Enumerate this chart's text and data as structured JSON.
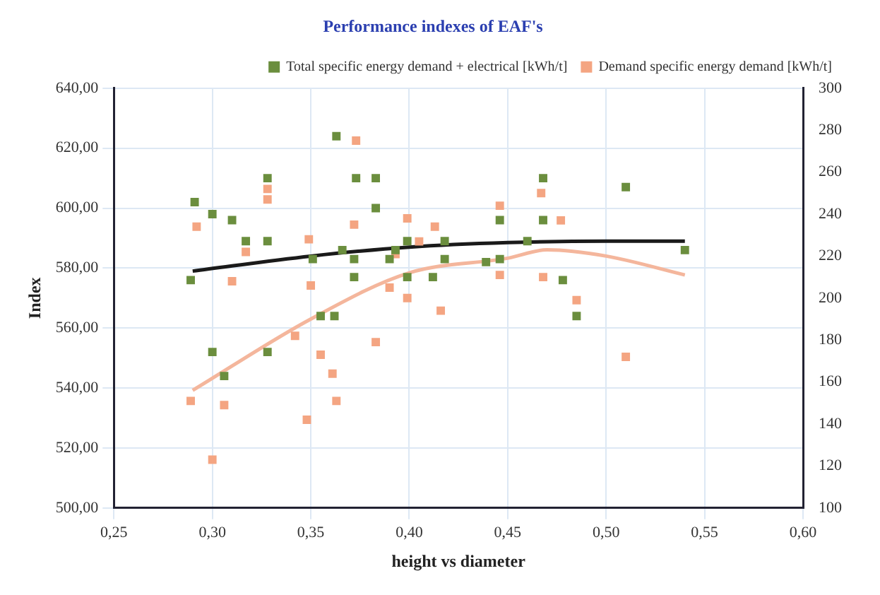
{
  "chart_data": {
    "type": "scatter",
    "title": "Performance indexes of EAF's",
    "xlabel": "height vs diameter",
    "ylabel": "Index",
    "xlim": [
      0.25,
      0.6
    ],
    "xticks": [
      {
        "value": 0.25,
        "label": "0,25"
      },
      {
        "value": 0.3,
        "label": "0,30"
      },
      {
        "value": 0.35,
        "label": "0,35"
      },
      {
        "value": 0.4,
        "label": "0,40"
      },
      {
        "value": 0.45,
        "label": "0,45"
      },
      {
        "value": 0.5,
        "label": "0,50"
      },
      {
        "value": 0.55,
        "label": "0,55"
      },
      {
        "value": 0.6,
        "label": "0,60"
      }
    ],
    "ylim": [
      500,
      640
    ],
    "yticks": [
      {
        "value": 500,
        "label": "500,00"
      },
      {
        "value": 520,
        "label": "520,00"
      },
      {
        "value": 540,
        "label": "540,00"
      },
      {
        "value": 560,
        "label": "560,00"
      },
      {
        "value": 580,
        "label": "580,00"
      },
      {
        "value": 600,
        "label": "600,00"
      },
      {
        "value": 620,
        "label": "620,00"
      },
      {
        "value": 640,
        "label": "640,00"
      }
    ],
    "y2lim": [
      100,
      300
    ],
    "y2ticks": [
      100,
      120,
      140,
      160,
      180,
      200,
      220,
      240,
      260,
      280,
      300
    ],
    "grid": true,
    "legend": "top right",
    "series": [
      {
        "name": "Total specific energy demand + electrical [kWh/t]",
        "marker": "square",
        "color": "#6b8e3e",
        "x": [
          0.291,
          0.3,
          0.31,
          0.317,
          0.328,
          0.328,
          0.328,
          0.3,
          0.306,
          0.289,
          0.351,
          0.355,
          0.362,
          0.363,
          0.366,
          0.372,
          0.373,
          0.372,
          0.383,
          0.383,
          0.39,
          0.393,
          0.399,
          0.399,
          0.412,
          0.418,
          0.418,
          0.439,
          0.446,
          0.446,
          0.46,
          0.468,
          0.468,
          0.478,
          0.485,
          0.51,
          0.54
        ],
        "values": [
          602,
          598,
          596,
          589,
          610,
          589,
          552,
          552,
          544,
          576,
          583,
          564,
          564,
          624,
          586,
          583,
          610,
          577,
          610,
          600,
          583,
          586,
          589,
          577,
          577,
          589,
          583,
          582,
          583,
          596,
          589,
          610,
          596,
          576,
          564,
          607,
          586
        ]
      },
      {
        "name": "Demand specific energy demand [kWh/t]",
        "marker": "square",
        "axis": "y2",
        "color": "#f4a582",
        "x": [
          0.292,
          0.3,
          0.306,
          0.289,
          0.31,
          0.317,
          0.328,
          0.328,
          0.342,
          0.349,
          0.35,
          0.348,
          0.355,
          0.361,
          0.363,
          0.372,
          0.373,
          0.383,
          0.393,
          0.399,
          0.399,
          0.39,
          0.405,
          0.413,
          0.416,
          0.446,
          0.446,
          0.467,
          0.468,
          0.477,
          0.485,
          0.51
        ],
        "values": [
          234,
          123,
          149,
          151,
          208,
          222,
          252,
          247,
          182,
          228,
          206,
          142,
          173,
          164,
          151,
          235,
          275,
          179,
          221,
          238,
          200,
          205,
          227,
          234,
          194,
          244,
          211,
          250,
          210,
          237,
          199,
          172
        ]
      },
      {
        "type": "line",
        "marker": "none",
        "color": "#1a1a1a",
        "x": [
          0.29,
          0.35,
          0.4,
          0.45,
          0.5,
          0.54
        ],
        "values": [
          579,
          584,
          587,
          588.5,
          589,
          589
        ]
      },
      {
        "type": "line",
        "marker": "none",
        "axis": "y2",
        "color": "#f4b69c",
        "x": [
          0.29,
          0.35,
          0.4,
          0.45,
          0.47,
          0.5,
          0.54
        ],
        "values": [
          156,
          190,
          212,
          219,
          223,
          220,
          211
        ]
      }
    ]
  }
}
